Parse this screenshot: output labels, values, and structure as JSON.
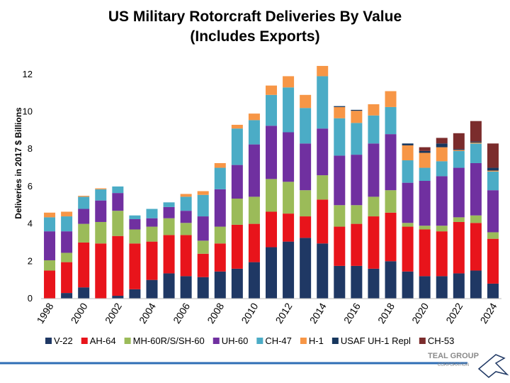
{
  "chart_data": {
    "type": "stacked_bar",
    "title": "US Military Rotorcraft Deliveries By Value",
    "subtitle": "(Includes Exports)",
    "y_label": "Deliveries in 2017 $ Billions",
    "categories": [
      "1998",
      null,
      "2000",
      null,
      "2002",
      null,
      "2004",
      null,
      "2006",
      null,
      "2008",
      null,
      "2010",
      null,
      "2012",
      null,
      "2014",
      null,
      "2016",
      null,
      "2018",
      null,
      "2020",
      null,
      "2022",
      null,
      "2024"
    ],
    "ylim": [
      0,
      12.6
    ],
    "yticks": [
      0,
      2,
      4,
      6,
      8,
      10,
      12
    ],
    "grid": false,
    "series": [
      {
        "name": "V-22",
        "color": "#1f3864",
        "values": [
          0,
          0.3,
          0.6,
          0,
          0.15,
          0.5,
          1.0,
          1.35,
          1.2,
          1.15,
          1.45,
          1.6,
          1.95,
          2.75,
          3.05,
          3.25,
          2.95,
          1.75,
          1.75,
          1.6,
          2.0,
          1.45,
          1.2,
          1.2,
          1.35,
          1.5,
          0.8
        ]
      },
      {
        "name": "AH-64",
        "color": "#e8141b",
        "values": [
          1.5,
          1.65,
          2.4,
          2.95,
          3.2,
          2.45,
          2.05,
          2.05,
          2.2,
          1.25,
          1.5,
          2.35,
          2.05,
          1.9,
          1.5,
          1.15,
          2.35,
          2.1,
          2.25,
          2.8,
          2.6,
          2.4,
          2.5,
          2.4,
          2.75,
          2.55,
          2.4
        ]
      },
      {
        "name": "MH-60R/S/SH-60",
        "color": "#9bbb59",
        "values": [
          0.55,
          0.5,
          1.0,
          1.15,
          1.35,
          0.75,
          0.8,
          0.9,
          0.65,
          0.7,
          0.9,
          1.4,
          1.45,
          1.75,
          1.7,
          1.4,
          1.3,
          1.15,
          1.0,
          1.05,
          1.2,
          0.2,
          0.2,
          0.3,
          0.25,
          0.4,
          0.35
        ]
      },
      {
        "name": "UH-60",
        "color": "#7030a0",
        "values": [
          1.55,
          1.15,
          0.8,
          1.15,
          0.95,
          0.55,
          0.45,
          0.6,
          0.65,
          1.3,
          2.0,
          1.8,
          2.8,
          2.85,
          2.65,
          2.5,
          2.5,
          2.65,
          2.7,
          2.85,
          3.0,
          2.15,
          2.4,
          2.65,
          2.65,
          2.8,
          2.25
        ]
      },
      {
        "name": "CH-47",
        "color": "#4bacc6",
        "values": [
          0.75,
          0.8,
          0.65,
          0.6,
          0.35,
          0.2,
          0.5,
          0.25,
          0.75,
          1.15,
          1.15,
          1.95,
          1.3,
          1.65,
          2.4,
          1.9,
          2.8,
          2.0,
          1.7,
          1.5,
          1.45,
          1.2,
          0.7,
          0.8,
          0.9,
          1.05,
          1.0
        ]
      },
      {
        "name": "H-1",
        "color": "#f79646",
        "values": [
          0.25,
          0.25,
          0.05,
          0.05,
          0,
          0,
          0,
          0,
          0.15,
          0.2,
          0.25,
          0.2,
          0.35,
          0.5,
          0.6,
          0.7,
          0.55,
          0.6,
          0.65,
          0.6,
          0.85,
          0.8,
          0.8,
          0.75,
          0.05,
          0.05,
          0.05
        ]
      },
      {
        "name": "USAF UH-1 Repl",
        "color": "#17375e",
        "values": [
          0,
          0,
          0,
          0,
          0,
          0,
          0,
          0,
          0,
          0,
          0,
          0,
          0,
          0,
          0,
          0,
          0,
          0.05,
          0.05,
          0,
          0,
          0.1,
          0.1,
          0.2,
          0.05,
          0.05,
          0.15
        ]
      },
      {
        "name": "CH-53",
        "color": "#7b2c2c",
        "values": [
          0,
          0,
          0,
          0,
          0,
          0,
          0,
          0,
          0,
          0,
          0,
          0,
          0,
          0,
          0,
          0,
          0,
          0,
          0,
          0,
          0,
          0,
          0.2,
          0.3,
          0.85,
          1.1,
          1.3
        ]
      }
    ]
  },
  "logo": {
    "name": "TEAL GROUP",
    "sub": "CORPORATION"
  }
}
